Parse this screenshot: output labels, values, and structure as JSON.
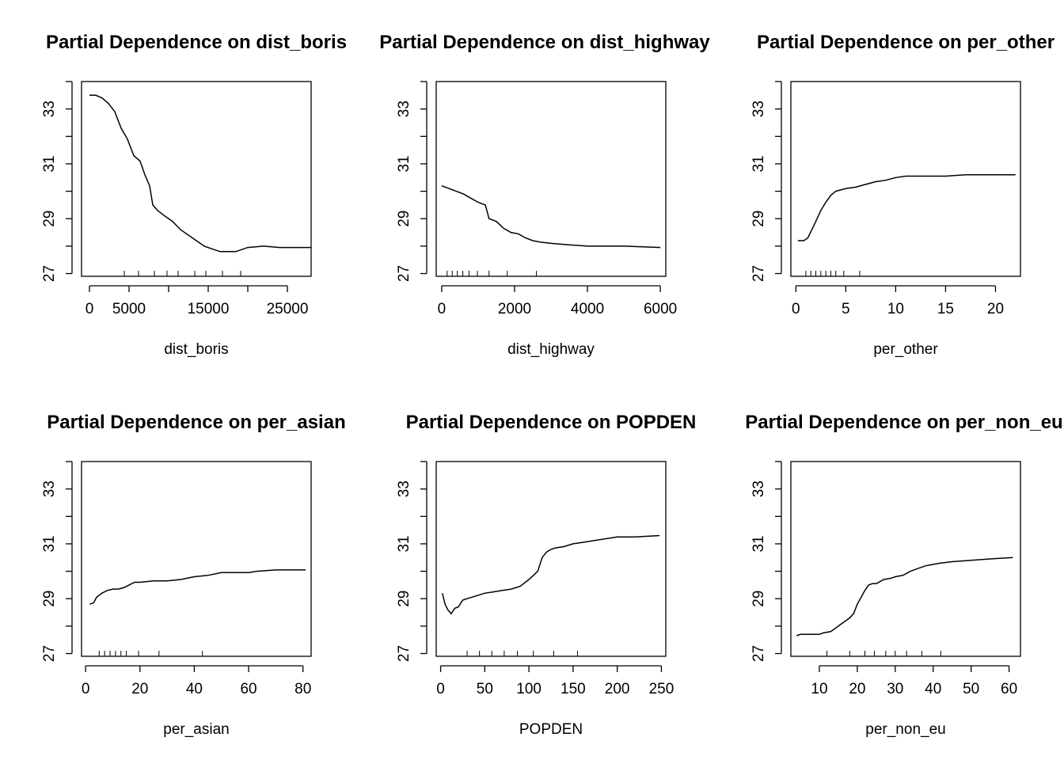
{
  "chart_data": [
    {
      "type": "line",
      "title": "Partial Dependence on dist_boris",
      "xlabel": "dist_boris",
      "ylabel": "",
      "xlim": [
        -1000,
        28000
      ],
      "ylim": [
        26.9,
        34
      ],
      "xticks": [
        0,
        5000,
        15000,
        25000
      ],
      "xtick_labels": [
        "0",
        "5000",
        "15000",
        "25000"
      ],
      "yticks": [
        27,
        29,
        31,
        33
      ],
      "ytick_labels": [
        "27",
        "29",
        "31",
        "33"
      ],
      "series": [
        {
          "x": [
            0,
            800,
            1600,
            2400,
            3200,
            4000,
            4800,
            5600,
            6400,
            7000,
            7600,
            8000,
            8600,
            9500,
            10500,
            11500,
            12500,
            13500,
            14500,
            15500,
            16500,
            17500,
            18500,
            20000,
            22000,
            24000,
            26000,
            28000
          ],
          "y": [
            33.5,
            33.5,
            33.4,
            33.2,
            32.9,
            32.3,
            31.9,
            31.3,
            31.1,
            30.6,
            30.2,
            29.5,
            29.3,
            29.1,
            28.9,
            28.6,
            28.4,
            28.2,
            28.0,
            27.9,
            27.8,
            27.8,
            27.8,
            27.95,
            28.0,
            27.95,
            27.95,
            27.95
          ]
        }
      ],
      "rug": [
        4400,
        6200,
        8200,
        9800,
        11200,
        13300,
        14700,
        16800,
        19100
      ]
    },
    {
      "type": "line",
      "title": "Partial Dependence on dist_highway",
      "xlabel": "dist_highway",
      "ylabel": "",
      "xlim": [
        -150,
        6150
      ],
      "ylim": [
        26.9,
        34
      ],
      "xticks": [
        0,
        2000,
        4000,
        6000
      ],
      "xtick_labels": [
        "0",
        "2000",
        "4000",
        "6000"
      ],
      "yticks": [
        27,
        29,
        31,
        33
      ],
      "ytick_labels": [
        "27",
        "29",
        "31",
        "33"
      ],
      "series": [
        {
          "x": [
            0,
            200,
            400,
            600,
            800,
            1000,
            1200,
            1300,
            1500,
            1700,
            1900,
            2100,
            2300,
            2500,
            2700,
            3000,
            3500,
            4000,
            5000,
            6000
          ],
          "y": [
            30.2,
            30.1,
            30.0,
            29.9,
            29.75,
            29.6,
            29.5,
            29.0,
            28.9,
            28.65,
            28.5,
            28.45,
            28.3,
            28.2,
            28.15,
            28.1,
            28.05,
            28.0,
            28.0,
            27.95
          ]
        }
      ],
      "rug": [
        150,
        290,
        430,
        580,
        750,
        980,
        1300,
        1800,
        2600
      ]
    },
    {
      "type": "line",
      "title": "Partial Dependence on per_other",
      "xlabel": "per_other",
      "ylabel": "",
      "xlim": [
        -0.5,
        22.5
      ],
      "ylim": [
        26.9,
        34
      ],
      "xticks": [
        0,
        5,
        10,
        15,
        20
      ],
      "xtick_labels": [
        "0",
        "5",
        "10",
        "15",
        "20"
      ],
      "yticks": [
        27,
        29,
        31,
        33
      ],
      "ytick_labels": [
        "27",
        "29",
        "31",
        "33"
      ],
      "series": [
        {
          "x": [
            0.2,
            0.8,
            1.2,
            1.6,
            2.0,
            2.5,
            3.0,
            3.5,
            4.0,
            4.5,
            5.0,
            6.0,
            7.0,
            8.0,
            9.0,
            10.0,
            11.0,
            13.0,
            15.0,
            17.0,
            19.0,
            22.0
          ],
          "y": [
            28.2,
            28.2,
            28.3,
            28.6,
            28.9,
            29.3,
            29.6,
            29.85,
            30.0,
            30.05,
            30.1,
            30.15,
            30.25,
            30.35,
            30.4,
            30.5,
            30.55,
            30.55,
            30.55,
            30.6,
            30.6,
            30.6
          ]
        }
      ],
      "rug": [
        1.0,
        1.5,
        2.0,
        2.5,
        3.0,
        3.5,
        4.0,
        4.8,
        6.4
      ]
    },
    {
      "type": "line",
      "title": "Partial Dependence on per_asian",
      "xlabel": "per_asian",
      "ylabel": "",
      "xlim": [
        -1.5,
        83
      ],
      "ylim": [
        26.9,
        34
      ],
      "xticks": [
        0,
        20,
        40,
        60,
        80
      ],
      "xtick_labels": [
        "0",
        "20",
        "40",
        "60",
        "80"
      ],
      "yticks": [
        27,
        29,
        31,
        33
      ],
      "ytick_labels": [
        "27",
        "29",
        "31",
        "33"
      ],
      "series": [
        {
          "x": [
            1.5,
            3,
            4,
            6,
            8,
            10,
            12,
            14,
            16,
            18,
            20,
            25,
            30,
            35,
            40,
            45,
            50,
            55,
            60,
            63,
            70,
            81
          ],
          "y": [
            28.8,
            28.85,
            29.05,
            29.2,
            29.3,
            29.35,
            29.35,
            29.4,
            29.5,
            29.6,
            29.6,
            29.65,
            29.65,
            29.7,
            29.8,
            29.85,
            29.95,
            29.95,
            29.95,
            30.0,
            30.05,
            30.05
          ]
        }
      ],
      "rug": [
        5,
        7,
        9,
        11,
        13,
        15,
        19.5,
        27,
        43
      ]
    },
    {
      "type": "line",
      "title": "Partial Dependence on POPDEN",
      "xlabel": "POPDEN",
      "ylabel": "",
      "xlim": [
        -5,
        255
      ],
      "ylim": [
        26.9,
        34
      ],
      "xticks": [
        0,
        50,
        100,
        150,
        200,
        250
      ],
      "xtick_labels": [
        "0",
        "50",
        "100",
        "150",
        "200",
        "250"
      ],
      "yticks": [
        27,
        29,
        31,
        33
      ],
      "ytick_labels": [
        "27",
        "29",
        "31",
        "33"
      ],
      "series": [
        {
          "x": [
            2,
            5,
            8,
            12,
            16,
            20,
            25,
            30,
            40,
            50,
            60,
            70,
            80,
            90,
            100,
            105,
            110,
            115,
            120,
            125,
            130,
            140,
            150,
            160,
            170,
            180,
            190,
            200,
            220,
            248
          ],
          "y": [
            29.2,
            28.8,
            28.6,
            28.45,
            28.65,
            28.7,
            28.95,
            29.0,
            29.1,
            29.2,
            29.25,
            29.3,
            29.35,
            29.45,
            29.7,
            29.85,
            30.0,
            30.5,
            30.7,
            30.8,
            30.85,
            30.9,
            31.0,
            31.05,
            31.1,
            31.15,
            31.2,
            31.25,
            31.25,
            31.3
          ]
        }
      ],
      "rug": [
        30,
        44,
        58,
        72,
        87,
        105,
        128,
        155
      ]
    },
    {
      "type": "line",
      "title": "Partial Dependence on per_non_eu",
      "xlabel": "per_non_eu",
      "ylabel": "",
      "xlim": [
        2.5,
        63
      ],
      "ylim": [
        26.9,
        34
      ],
      "xticks": [
        10,
        20,
        30,
        40,
        50,
        60
      ],
      "xtick_labels": [
        "10",
        "20",
        "30",
        "40",
        "50",
        "60"
      ],
      "yticks": [
        27,
        29,
        31,
        33
      ],
      "ytick_labels": [
        "27",
        "29",
        "31",
        "33"
      ],
      "series": [
        {
          "x": [
            4,
            5,
            7,
            10,
            11,
            13,
            14,
            15,
            16,
            17,
            18,
            19,
            20,
            21,
            22,
            23,
            24,
            25,
            27,
            29,
            30,
            32,
            34,
            36,
            38,
            40,
            42,
            45,
            50,
            55,
            61
          ],
          "y": [
            27.65,
            27.7,
            27.7,
            27.7,
            27.75,
            27.8,
            27.9,
            28.0,
            28.1,
            28.2,
            28.3,
            28.45,
            28.8,
            29.05,
            29.3,
            29.5,
            29.55,
            29.55,
            29.7,
            29.75,
            29.8,
            29.85,
            30.0,
            30.1,
            30.2,
            30.25,
            30.3,
            30.35,
            30.4,
            30.45,
            30.5
          ]
        }
      ],
      "rug": [
        12,
        18,
        22,
        24.5,
        27.5,
        30,
        33,
        37,
        42
      ]
    }
  ]
}
